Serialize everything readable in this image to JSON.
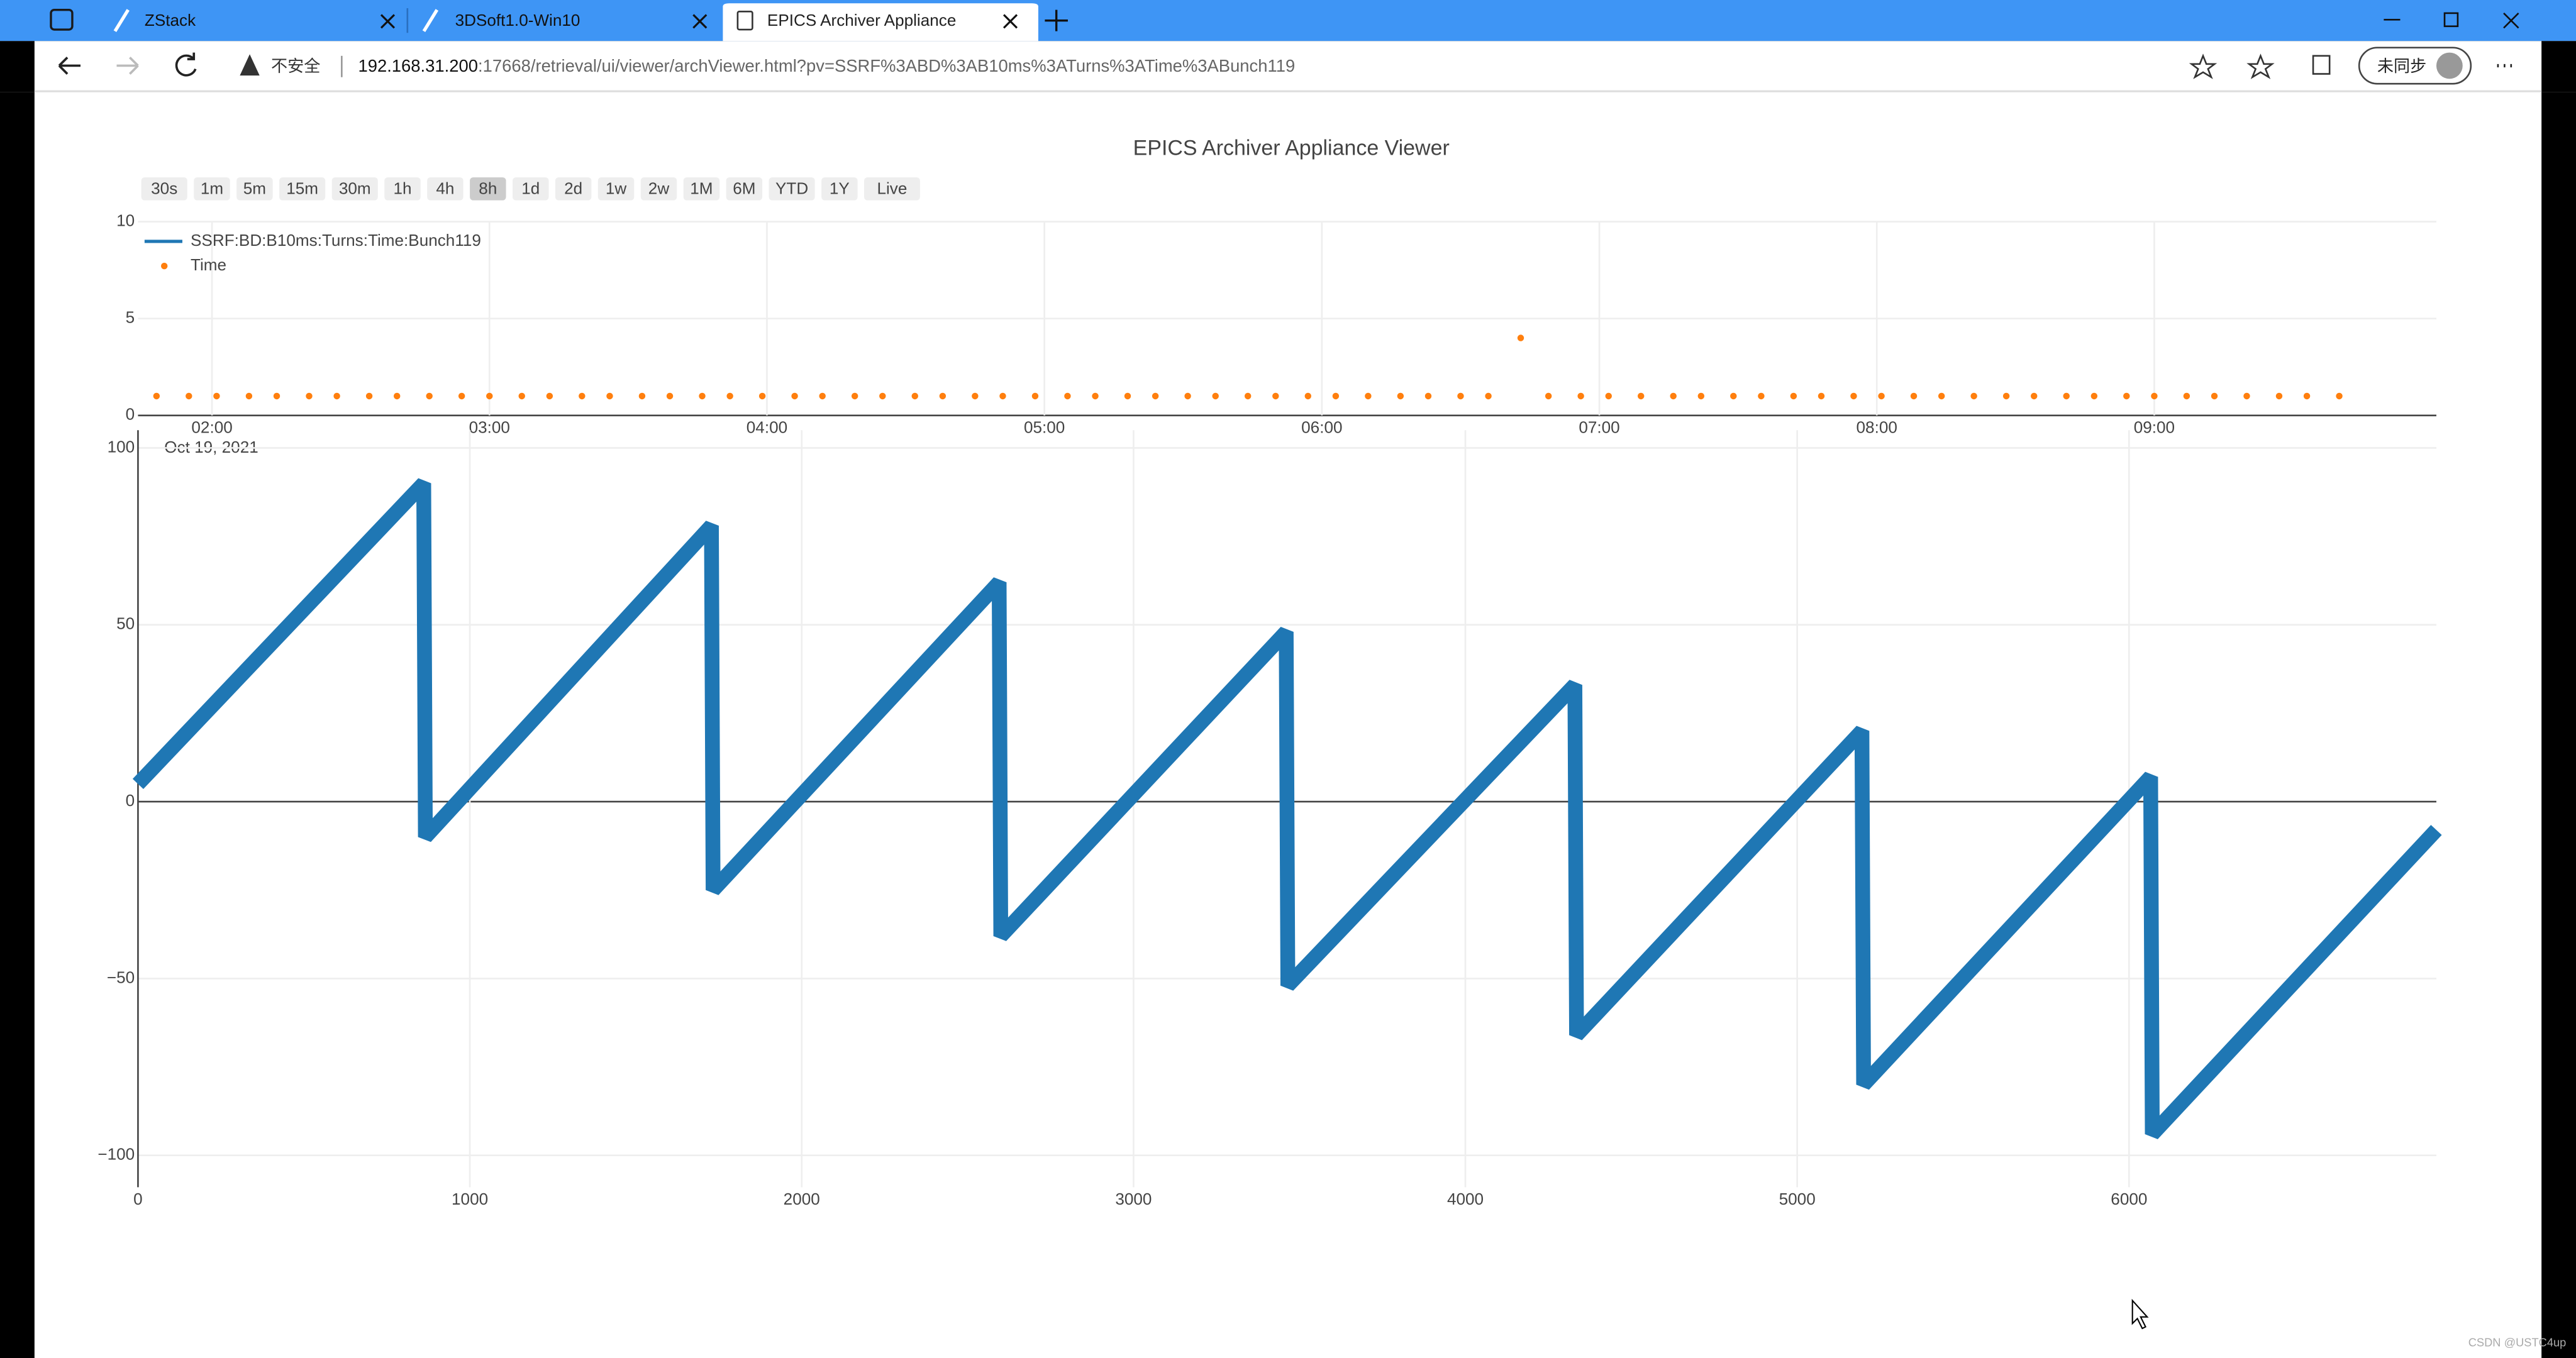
{
  "browser": {
    "tabs": [
      "ZStack",
      "3DSoft1.0-Win10",
      "EPICS Archiver Appliance"
    ],
    "security": "不安全",
    "url_host": "192.168.31.200",
    "url_rest": ":17668/retrieval/ui/viewer/archViewer.html?pv=SSRF%3ABD%3AB10ms%3ATurns%3ATime%3ABunch119",
    "profile": "未同步"
  },
  "range_buttons": [
    "30s",
    "1m",
    "5m",
    "15m",
    "30m",
    "1h",
    "4h",
    "8h",
    "1d",
    "2d",
    "1w",
    "2w",
    "1M",
    "6M",
    "YTD",
    "1Y",
    "Live"
  ],
  "selected_button": "8h",
  "watermark": "CSDN @USTC4up",
  "chart_data": [
    {
      "type": "scatter",
      "title": "EPICS Archiver Appliance Viewer",
      "x": [
        "2021-10-19 01:48",
        "2021-10-19 01:55",
        "2021-10-19 02:01",
        "2021-10-19 02:08",
        "2021-10-19 02:14",
        "2021-10-19 02:21",
        "2021-10-19 02:27",
        "2021-10-19 02:34",
        "2021-10-19 02:40",
        "2021-10-19 02:47",
        "2021-10-19 02:54",
        "2021-10-19 03:00",
        "2021-10-19 03:07",
        "2021-10-19 03:13",
        "2021-10-19 03:20",
        "2021-10-19 03:26",
        "2021-10-19 03:33",
        "2021-10-19 03:39",
        "2021-10-19 03:46",
        "2021-10-19 03:52",
        "2021-10-19 03:59",
        "2021-10-19 04:06",
        "2021-10-19 04:12",
        "2021-10-19 04:19",
        "2021-10-19 04:25",
        "2021-10-19 04:32",
        "2021-10-19 04:38",
        "2021-10-19 04:45",
        "2021-10-19 04:51",
        "2021-10-19 04:58",
        "2021-10-19 05:05",
        "2021-10-19 05:11",
        "2021-10-19 05:18",
        "2021-10-19 05:24",
        "2021-10-19 05:31",
        "2021-10-19 05:37",
        "2021-10-19 05:44",
        "2021-10-19 05:50",
        "2021-10-19 05:57",
        "2021-10-19 06:03",
        "2021-10-19 06:10",
        "2021-10-19 06:17",
        "2021-10-19 06:23",
        "2021-10-19 06:30",
        "2021-10-19 06:36",
        "2021-10-19 06:43",
        "2021-10-19 06:49",
        "2021-10-19 06:56",
        "2021-10-19 07:02",
        "2021-10-19 07:09",
        "2021-10-19 07:16",
        "2021-10-19 07:22",
        "2021-10-19 07:29",
        "2021-10-19 07:35",
        "2021-10-19 07:42",
        "2021-10-19 07:48",
        "2021-10-19 07:55",
        "2021-10-19 08:01",
        "2021-10-19 08:08",
        "2021-10-19 08:14",
        "2021-10-19 08:21",
        "2021-10-19 08:28",
        "2021-10-19 08:34",
        "2021-10-19 08:41",
        "2021-10-19 08:47",
        "2021-10-19 08:54",
        "2021-10-19 09:00",
        "2021-10-19 09:07",
        "2021-10-19 09:13",
        "2021-10-19 09:20",
        "2021-10-19 09:27",
        "2021-10-19 09:33",
        "2021-10-19 09:40"
      ],
      "series": [
        {
          "name": "Time",
          "color": "#ff7f0e",
          "values": [
            1,
            1,
            1,
            1,
            1,
            1,
            1,
            1,
            1,
            1,
            1,
            1,
            1,
            1,
            1,
            1,
            1,
            1,
            1,
            1,
            1,
            1,
            1,
            1,
            1,
            1,
            1,
            1,
            1,
            1,
            1,
            1,
            1,
            1,
            1,
            1,
            1,
            1,
            1,
            1,
            1,
            1,
            1,
            1,
            1,
            4,
            1,
            1,
            1,
            1,
            1,
            1,
            1,
            1,
            1,
            1,
            1,
            1,
            1,
            1,
            1,
            1,
            1,
            1,
            1,
            1,
            1,
            1,
            1,
            1,
            1,
            1,
            1
          ]
        }
      ],
      "xlim": [
        "2021-10-19 01:44",
        "2021-10-19 10:01"
      ],
      "xticks": [
        {
          "value": "2021-10-19 02:00",
          "label": "02:00"
        },
        {
          "value": "2021-10-19 03:00",
          "label": "03:00"
        },
        {
          "value": "2021-10-19 04:00",
          "label": "04:00"
        },
        {
          "value": "2021-10-19 05:00",
          "label": "05:00"
        },
        {
          "value": "2021-10-19 06:00",
          "label": "06:00"
        },
        {
          "value": "2021-10-19 07:00",
          "label": "07:00"
        },
        {
          "value": "2021-10-19 08:00",
          "label": "08:00"
        },
        {
          "value": "2021-10-19 09:00",
          "label": "09:00"
        }
      ],
      "x_date_label": "Oct 19, 2021",
      "ylim": [
        0,
        10
      ],
      "yticks": [
        0,
        5,
        10
      ],
      "grid": true
    },
    {
      "type": "line",
      "x": [
        0,
        861,
        866,
        1728,
        1733,
        2595,
        2600,
        3460,
        3465,
        4330,
        4335,
        5195,
        5200,
        6065,
        6070,
        6926
      ],
      "series": [
        {
          "name": "SSRF:BD:B10ms:Turns:Time:Bunch119",
          "color": "#1f77b4",
          "values": [
            5,
            90,
            -10,
            78,
            -25,
            62,
            -38,
            48,
            -52,
            33,
            -66,
            20,
            -80,
            7,
            -94,
            -8
          ]
        }
      ],
      "xlim": [
        0,
        6926
      ],
      "xticks": [
        0,
        1000,
        2000,
        3000,
        4000,
        5000,
        6000
      ],
      "ylim": [
        -109,
        105
      ],
      "yticks": [
        {
          "value": -100,
          "label": "−100"
        },
        {
          "value": -50,
          "label": "−50"
        },
        0,
        50,
        100
      ],
      "grid": true
    }
  ]
}
